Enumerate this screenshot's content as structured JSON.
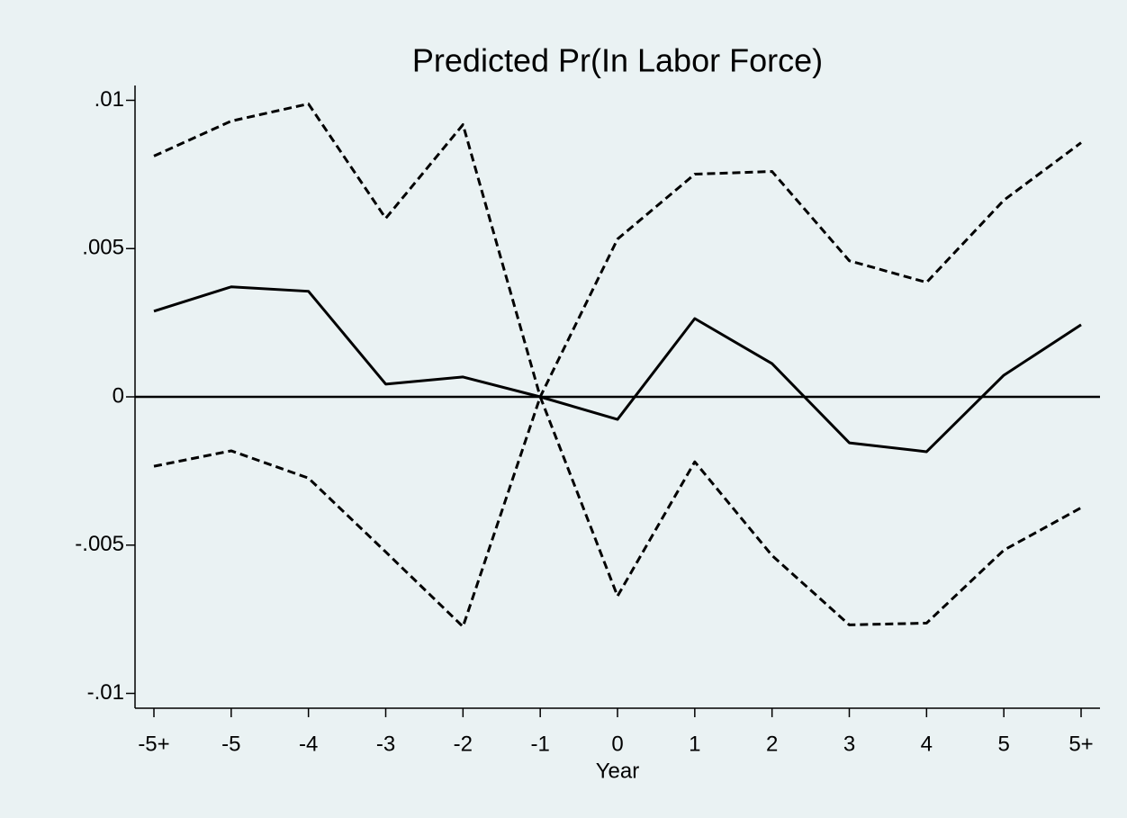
{
  "chart_data": {
    "type": "line",
    "title": "Predicted Pr(In Labor Force)",
    "x_label": "Year",
    "categories": [
      "-5+",
      "-5",
      "-4",
      "-3",
      "-2",
      "-1",
      "0",
      "1",
      "2",
      "3",
      "4",
      "5",
      "5+"
    ],
    "series": [
      {
        "color": "#000000",
        "dashed": false,
        "values": [
          0.00289,
          0.00371,
          0.00356,
          0.00043,
          0.00067,
          0,
          -0.00076,
          0.00264,
          0.00112,
          -0.00155,
          -0.00185,
          0.00073,
          0.00243
        ]
      },
      {
        "color": "#000000",
        "dashed": true,
        "values": [
          0.00812,
          0.0093,
          0.00988,
          0.00602,
          0.00918,
          0,
          0.00532,
          0.00751,
          0.0076,
          0.00459,
          0.00386,
          0.00663,
          0.00857
        ]
      },
      {
        "color": "#000000",
        "dashed": true,
        "values": [
          -0.00234,
          -0.00182,
          -0.00274,
          -0.00523,
          -0.00775,
          0,
          -0.00672,
          -0.00219,
          -0.00535,
          -0.00769,
          -0.00763,
          -0.00517,
          -0.00374
        ]
      }
    ],
    "ylim": [
      -0.0105,
      0.0105
    ],
    "yticks": [
      {
        "value": -0.01,
        "label": "-.01"
      },
      {
        "value": -0.005,
        "label": "-.005"
      },
      0,
      {
        "value": 0.005,
        "label": ".005"
      },
      {
        "value": 0.01,
        "label": ".01"
      }
    ],
    "reference_line": 0,
    "grid": false
  }
}
